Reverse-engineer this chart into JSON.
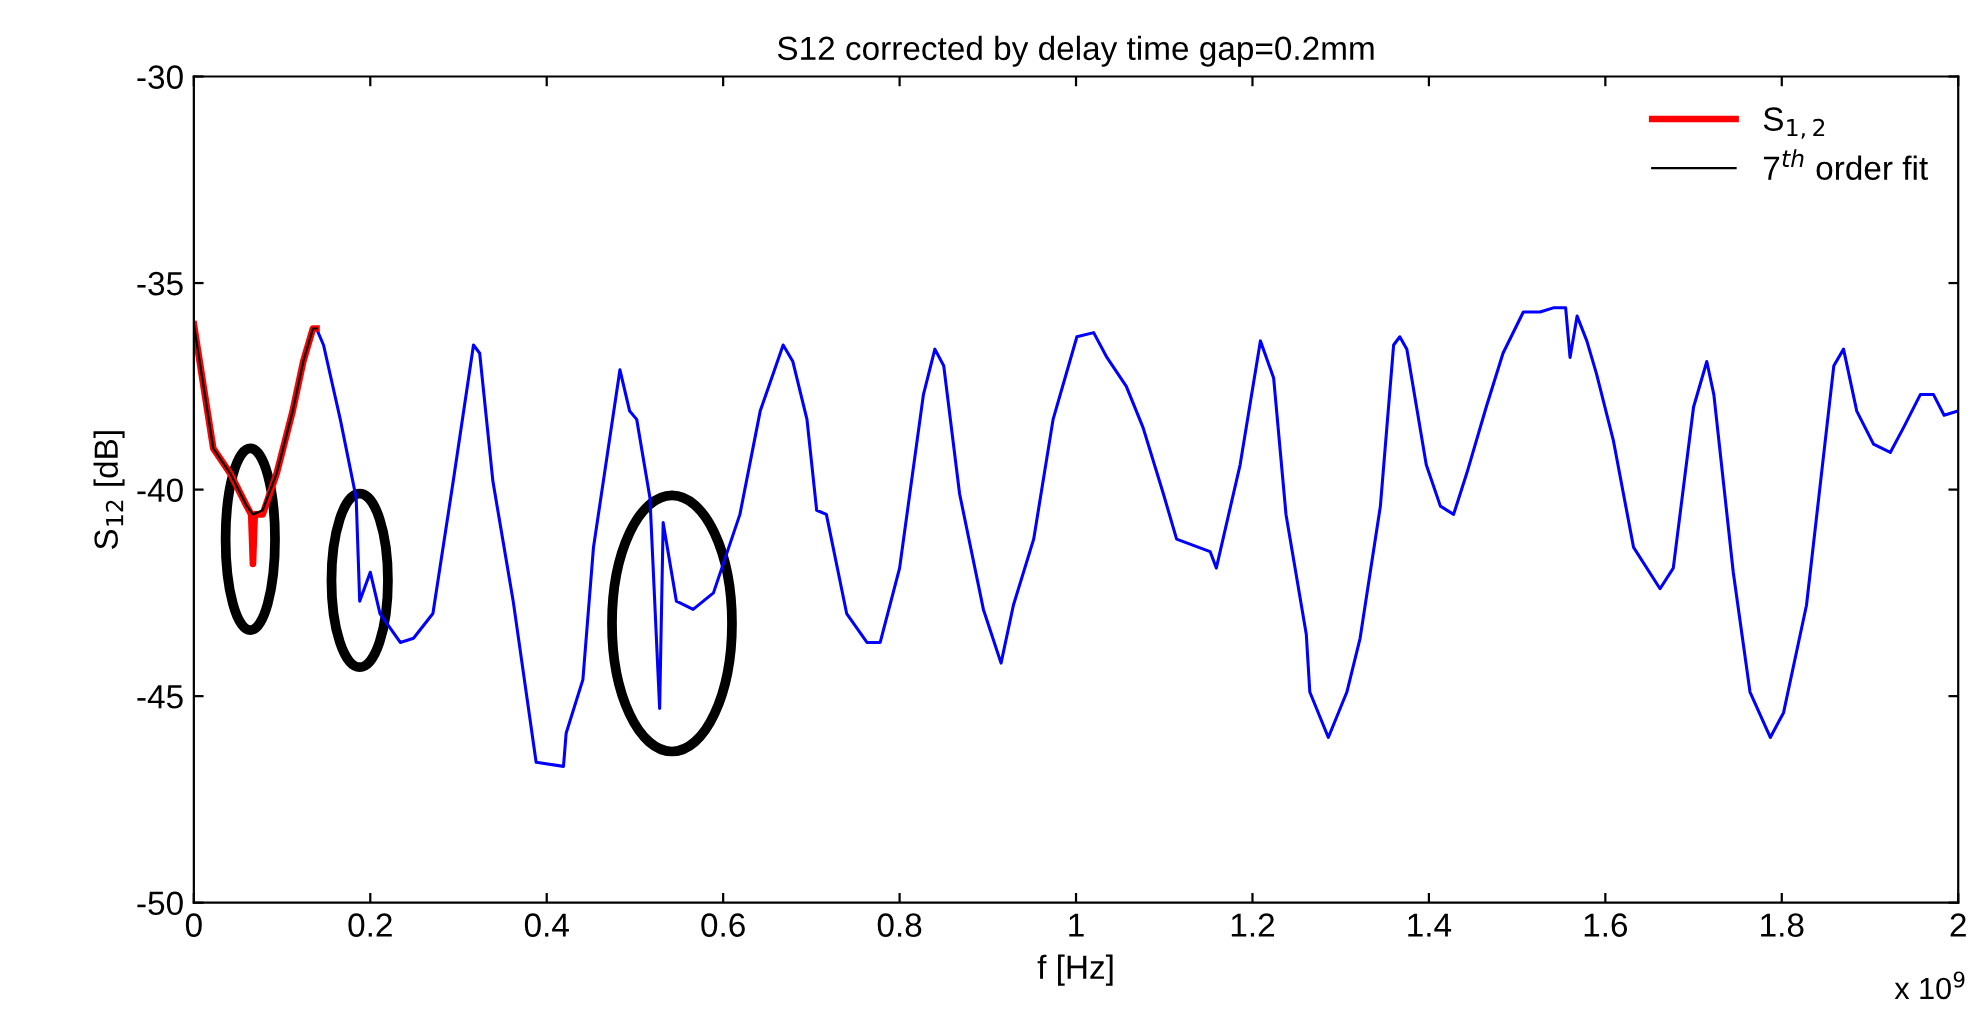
{
  "chart_data": {
    "type": "line",
    "title": "S12 corrected by delay time gap=0.2mm",
    "xlabel": "f [Hz]",
    "ylabel": "S$_{12}$ [dB]",
    "xlim": [
      0,
      2
    ],
    "ylim": [
      -50,
      -30
    ],
    "xticks": [
      {
        "value": 0,
        "label": "0"
      },
      {
        "value": 0.2,
        "label": "0.2"
      },
      {
        "value": 0.4,
        "label": "0.4"
      },
      {
        "value": 0.6,
        "label": "0.6"
      },
      {
        "value": 0.8,
        "label": "0.8"
      },
      {
        "value": 1,
        "label": "1"
      },
      {
        "value": 1.2,
        "label": "1.2"
      },
      {
        "value": 1.4,
        "label": "1.4"
      },
      {
        "value": 1.6,
        "label": "1.6"
      },
      {
        "value": 1.8,
        "label": "1.8"
      },
      {
        "value": 2,
        "label": "2"
      }
    ],
    "yticks": [
      -50,
      -45,
      -40,
      -35,
      -30
    ],
    "grid": false,
    "legend": "top right",
    "annotations": [
      "x 10$^{9}$"
    ],
    "series": [
      {
        "color": "#0000ff",
        "x": [
          0.139,
          0.147,
          0.166,
          0.184,
          0.188,
          0.2,
          0.211,
          0.234,
          0.249,
          0.271,
          0.294,
          0.317,
          0.324,
          0.339,
          0.362,
          0.388,
          0.419,
          0.422,
          0.441,
          0.453,
          0.483,
          0.494,
          0.502,
          0.517,
          0.528,
          0.532,
          0.547,
          0.566,
          0.589,
          0.619,
          0.642,
          0.668,
          0.679,
          0.695,
          0.706,
          0.717,
          0.74,
          0.763,
          0.778,
          0.8,
          0.827,
          0.84,
          0.85,
          0.868,
          0.895,
          0.915,
          0.929,
          0.952,
          0.974,
          1.001,
          1.02,
          1.035,
          1.057,
          1.076,
          1.099,
          1.114,
          1.152,
          1.159,
          1.186,
          1.209,
          1.224,
          1.238,
          1.261,
          1.265,
          1.286,
          1.307,
          1.322,
          1.345,
          1.36,
          1.367,
          1.375,
          1.397,
          1.413,
          1.428,
          1.443,
          1.465,
          1.484,
          1.507,
          1.526,
          1.541,
          1.555,
          1.56,
          1.568,
          1.579,
          1.59,
          1.609,
          1.632,
          1.662,
          1.677,
          1.7,
          1.715,
          1.723,
          1.745,
          1.764,
          1.787,
          1.802,
          1.828,
          1.859,
          1.87,
          1.885,
          1.904,
          1.923,
          1.938,
          1.957,
          1.972,
          1.984,
          1.999
        ],
        "values": [
          -36.1,
          -36.5,
          -38.3,
          -40.2,
          -42.7,
          -42.0,
          -43.0,
          -43.7,
          -43.6,
          -43.0,
          -39.8,
          -36.5,
          -36.7,
          -39.8,
          -42.7,
          -46.6,
          -46.7,
          -45.9,
          -44.6,
          -41.4,
          -37.1,
          -38.1,
          -38.3,
          -40.2,
          -45.3,
          -40.8,
          -42.7,
          -42.9,
          -42.5,
          -40.6,
          -38.1,
          -36.5,
          -36.9,
          -38.3,
          -40.5,
          -40.6,
          -43.0,
          -43.7,
          -43.7,
          -41.9,
          -37.7,
          -36.6,
          -37.0,
          -40.1,
          -42.9,
          -44.2,
          -42.8,
          -41.2,
          -38.3,
          -36.3,
          -36.2,
          -36.8,
          -37.5,
          -38.5,
          -40.1,
          -41.2,
          -41.5,
          -41.9,
          -39.4,
          -36.4,
          -37.3,
          -40.6,
          -43.5,
          -44.9,
          -46.0,
          -44.9,
          -43.6,
          -40.4,
          -36.5,
          -36.3,
          -36.6,
          -39.4,
          -40.4,
          -40.6,
          -39.6,
          -38.0,
          -36.7,
          -35.7,
          -35.7,
          -35.6,
          -35.6,
          -36.8,
          -35.8,
          -36.4,
          -37.2,
          -38.8,
          -41.4,
          -42.4,
          -41.9,
          -38.0,
          -36.9,
          -37.7,
          -42.0,
          -44.9,
          -46.0,
          -45.4,
          -42.8,
          -37.0,
          -36.6,
          -38.1,
          -38.9,
          -39.1,
          -38.5,
          -37.7,
          -37.7,
          -38.2,
          -38.1
        ]
      },
      {
        "name": "S$_{1,2}$",
        "color": "#ff0000",
        "x": [
          0,
          0.022,
          0.041,
          0.06,
          0.065,
          0.067,
          0.069,
          0.078,
          0.094,
          0.112,
          0.124,
          0.135,
          0.139
        ],
        "values": [
          -36.0,
          -39.0,
          -39.6,
          -40.4,
          -40.6,
          -41.8,
          -40.6,
          -40.6,
          -39.6,
          -38.1,
          -36.9,
          -36.1,
          -36.1
        ]
      },
      {
        "name": "7$^{th}$ order fit",
        "color": "#000000",
        "x": [
          0,
          0.022,
          0.041,
          0.06,
          0.067,
          0.078,
          0.094,
          0.112,
          0.124,
          0.135,
          0.139
        ],
        "values": [
          -36.0,
          -39.0,
          -39.6,
          -40.4,
          -40.6,
          -40.5,
          -39.6,
          -38.1,
          -36.9,
          -36.1,
          -36.1
        ]
      }
    ]
  }
}
